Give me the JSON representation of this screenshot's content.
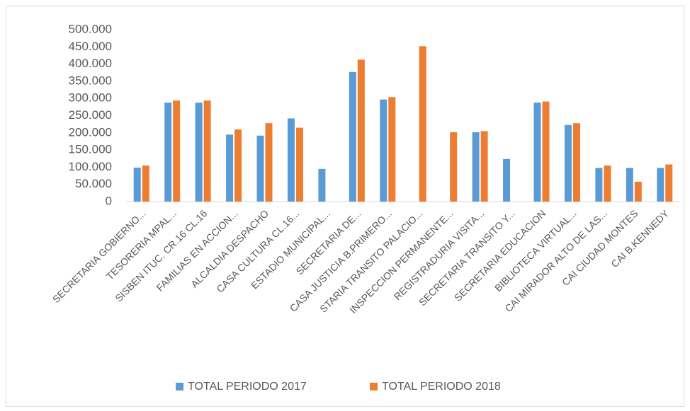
{
  "chart_data": {
    "type": "bar",
    "categories": [
      "SECRETARIA GOBIERNO...",
      "TESORERIA MPAL...",
      "SISBEN ITUC. CR.16 CL.16",
      "FAMILIAS EN ACCION...",
      "ALCALDIA DESPACHO",
      "CASA CULTURA CL.16...",
      "ESTADIO MUNICIPAL...",
      "SECRETARIA DE...",
      "CASA JUSTICIA B.PRIMERO...",
      "STARIA TRANSITO PALACIO...",
      "INSPECCION PERMANENTE...",
      "REGISTRADURIA VISITA...",
      "SECRETARIA TRANSITO Y...",
      "SECRETARIA EDUCACION",
      "BIBLIOTECA VIRTUAL...",
      "CAI MIRADOR ALTO DE LAS...",
      "CAI CIUDAD MONTES",
      "CAI B.KENNEDY"
    ],
    "series": [
      {
        "name": "TOTAL PERIODO 2017",
        "color": "#5b9bd5",
        "values": [
          99000,
          288000,
          288000,
          195000,
          192000,
          242000,
          95000,
          377000,
          297000,
          null,
          null,
          202000,
          124000,
          288000,
          223000,
          98000,
          98000,
          98000
        ]
      },
      {
        "name": "TOTAL PERIODO 2018",
        "color": "#ed7d31",
        "values": [
          105000,
          294000,
          294000,
          210000,
          228000,
          215000,
          null,
          413000,
          304000,
          452000,
          202000,
          205000,
          null,
          291000,
          228000,
          105000,
          58000,
          108000
        ]
      }
    ],
    "ylim": [
      0,
      500000
    ],
    "yticks": [
      0,
      {
        "value": 50000,
        "label": "50.000"
      },
      {
        "value": 100000,
        "label": "100.000"
      },
      {
        "value": 150000,
        "label": "150.000"
      },
      {
        "value": 200000,
        "label": "200.000"
      },
      {
        "value": 250000,
        "label": "250.000"
      },
      {
        "value": 300000,
        "label": "300.000"
      },
      {
        "value": 350000,
        "label": "350.000"
      },
      {
        "value": 400000,
        "label": "400.000"
      },
      {
        "value": 450000,
        "label": "450.000"
      },
      {
        "value": 500000,
        "label": "500.000"
      }
    ],
    "grid": false,
    "legend": "bottom"
  }
}
